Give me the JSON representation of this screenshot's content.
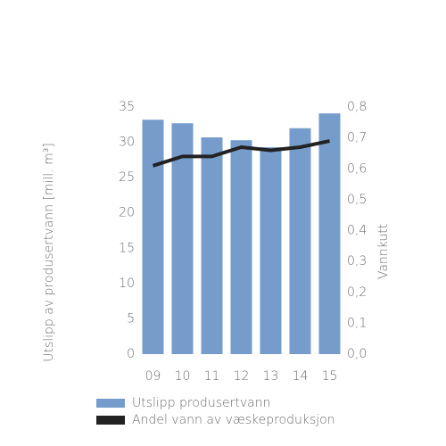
{
  "chart_data": {
    "type": "bar-line",
    "categories": [
      "09",
      "10",
      "11",
      "12",
      "13",
      "14",
      "15"
    ],
    "series": [
      {
        "name": "Utslipp produsertvann",
        "type": "bar",
        "axis": "y",
        "color": "#759ccb",
        "values": [
          33.2,
          32.7,
          30.7,
          30.3,
          29.3,
          32.0,
          34.1
        ]
      },
      {
        "name": "Andel vann av væskeproduksjon",
        "type": "line",
        "axis": "y2",
        "color": "#222222",
        "values": [
          0.61,
          0.64,
          0.64,
          0.67,
          0.66,
          0.67,
          0.69
        ]
      }
    ],
    "ylabel": "Utslipp av produsertvann [mill. m³]",
    "y2label": "Vannkutt",
    "ylim": [
      0,
      35
    ],
    "yticks": [
      0,
      5,
      10,
      15,
      20,
      25,
      30,
      35
    ],
    "y2lim": [
      0,
      0.8
    ],
    "y2ticks": [
      {
        "value": 0,
        "label": "0,0"
      },
      {
        "value": 0.1,
        "label": "0,1"
      },
      {
        "value": 0.2,
        "label": "0,2"
      },
      {
        "value": 0.3,
        "label": "0,3"
      },
      {
        "value": 0.4,
        "label": "0,4"
      },
      {
        "value": 0.5,
        "label": "0,5"
      },
      {
        "value": 0.6,
        "label": "0,6"
      },
      {
        "value": 0.7,
        "label": "0,7"
      },
      {
        "value": 0.8,
        "label": "0,8"
      }
    ]
  }
}
